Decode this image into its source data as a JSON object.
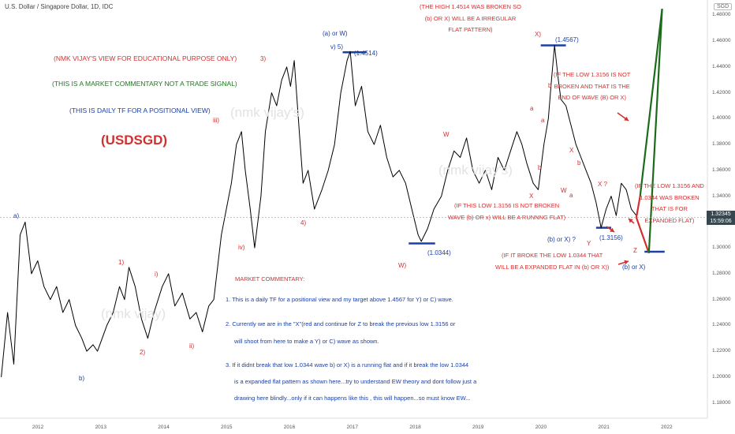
{
  "header": {
    "title": "U.S. Dollar / Singapore Dollar, 1D, IDC"
  },
  "currency_badge": "SGD",
  "last_price": {
    "value": "1.32345",
    "countdown": "15:59:06"
  },
  "intro": {
    "line1": "(NMK VIJAY'S VIEW FOR EDUCATIONAL PURPOSE ONLY)",
    "line2": "(THIS IS A MARKET COMMENTARY NOT A TRADE SIGNAL)",
    "line3": "(THIS IS DAILY TF FOR A POSITIONAL VIEW)",
    "symbol": "(USDSGD)"
  },
  "watermark": {
    "main": "(nmk vijay's)",
    "second": "(nmk vijay's)",
    "third": "(nmk vijay)"
  },
  "notes": {
    "high_broken": [
      "(THE HIGH 1.4514 WAS BROKEN SO",
      "(b) OR X) WILL BE A IRREGULAR",
      "FLAT PATTERN)"
    ],
    "low_not_broken_end": [
      "(IF THE LOW 1.3156 IS NOT",
      "BROKEN AND THAT IS THE",
      "END OF WAVE (B) OR X)"
    ],
    "low_not_broken_running": [
      "(IF THIS LOW 1.3156 IS NOT BROKEN",
      "WAVE (b) OR x) WILL BE A RUNNNG FLAT)"
    ],
    "both_broken_expanded": [
      "(IF THE LOW 1.3156 AND",
      "1.0344 WAS BROKEN",
      "THAT IS FOR",
      "EXPANDED FLAT)"
    ],
    "low_1_0344_expanded": [
      "(IF IT BROKE THE LOW 1.0344 THAT",
      "WILL BE A EXPANDED FLAT IN (b) OR X))"
    ]
  },
  "commentary": {
    "title": "MARKET COMMENTARY:",
    "p1": "1. This is a daily TF for a positional view and my target above 1.4567 for Y) or C) wave.",
    "p2a": "2. Currently we are in the \"X\"(red and continue for Z to break the previous low 1.3156 or",
    "p2b": "will shoot from here to make a Y) or C) wave as shown.",
    "p3a": "3. If it didnt break that low 1.0344  wave b) or X) is a running flat and if it break the low 1.0344",
    "p3b": "is a expanded flat pattern as shown here...try to understand EW theory and dont follow just a",
    "p3c": "drawing here blindly...only if it can happens like this , this will happen...so must know EW..."
  },
  "wave_labels": {
    "a_blue": "a)",
    "b_blue": "b)",
    "w1": "1)",
    "w2": "2)",
    "wi": "i)",
    "wii": "ii)",
    "wiii": "iii)",
    "wiv": "iv)",
    "w3": "3)",
    "w4": "4)",
    "aw_top": "(a) or W)",
    "v5": "v) 5)",
    "p14514": "(1.4514)",
    "Wb": "W)",
    "p10344": "(1.0344)",
    "Wr": "W",
    "Xr": "X",
    "Xparen": "X)",
    "p14567": "(1.4567)",
    "a1": "a",
    "b1": "b",
    "a2": "a",
    "b2": "b",
    "b3": "b",
    "a3": "a",
    "X2": "X",
    "W2": "W",
    "Y": "Y",
    "bx1": "(b) or X) ?",
    "p13156": "(1.3156)",
    "Xq": "X ?",
    "Z": "Z",
    "bx2": "(b) or X)"
  },
  "chart_data": {
    "type": "line",
    "title": "U.S. Dollar / Singapore Dollar, 1D, IDC",
    "xlabel": "",
    "ylabel": "",
    "x_ticks": [
      "2012",
      "2013",
      "2014",
      "2015",
      "2016",
      "2017",
      "2018",
      "2019",
      "2020",
      "2021",
      "2022"
    ],
    "ylim": [
      1.17,
      1.49
    ],
    "y_ticks": [
      "1.48000",
      "1.46000",
      "1.44000",
      "1.42000",
      "1.40000",
      "1.38000",
      "1.36000",
      "1.34000",
      "1.32000",
      "1.30000",
      "1.28000",
      "1.26000",
      "1.24000",
      "1.22000",
      "1.20000",
      "1.18000"
    ],
    "grid": false,
    "series": [
      {
        "color": "#000000",
        "points": [
          [
            2011.42,
            1.2
          ],
          [
            2011.52,
            1.25
          ],
          [
            2011.62,
            1.21
          ],
          [
            2011.72,
            1.31
          ],
          [
            2011.8,
            1.32
          ],
          [
            2011.9,
            1.28
          ],
          [
            2012.0,
            1.29
          ],
          [
            2012.1,
            1.27
          ],
          [
            2012.2,
            1.26
          ],
          [
            2012.3,
            1.27
          ],
          [
            2012.4,
            1.25
          ],
          [
            2012.5,
            1.26
          ],
          [
            2012.6,
            1.24
          ],
          [
            2012.7,
            1.23
          ],
          [
            2012.78,
            1.22
          ],
          [
            2012.88,
            1.225
          ],
          [
            2012.95,
            1.22
          ],
          [
            2013.1,
            1.24
          ],
          [
            2013.2,
            1.25
          ],
          [
            2013.3,
            1.27
          ],
          [
            2013.38,
            1.26
          ],
          [
            2013.45,
            1.285
          ],
          [
            2013.55,
            1.27
          ],
          [
            2013.65,
            1.245
          ],
          [
            2013.75,
            1.23
          ],
          [
            2013.85,
            1.25
          ],
          [
            2013.98,
            1.27
          ],
          [
            2014.08,
            1.28
          ],
          [
            2014.18,
            1.255
          ],
          [
            2014.3,
            1.265
          ],
          [
            2014.42,
            1.245
          ],
          [
            2014.52,
            1.25
          ],
          [
            2014.62,
            1.235
          ],
          [
            2014.72,
            1.255
          ],
          [
            2014.8,
            1.26
          ],
          [
            2014.92,
            1.31
          ],
          [
            2015.0,
            1.33
          ],
          [
            2015.08,
            1.35
          ],
          [
            2015.16,
            1.38
          ],
          [
            2015.24,
            1.39
          ],
          [
            2015.3,
            1.36
          ],
          [
            2015.38,
            1.33
          ],
          [
            2015.45,
            1.3
          ],
          [
            2015.55,
            1.34
          ],
          [
            2015.62,
            1.39
          ],
          [
            2015.72,
            1.42
          ],
          [
            2015.8,
            1.41
          ],
          [
            2015.88,
            1.43
          ],
          [
            2015.96,
            1.44
          ],
          [
            2016.02,
            1.425
          ],
          [
            2016.08,
            1.445
          ],
          [
            2016.16,
            1.39
          ],
          [
            2016.22,
            1.35
          ],
          [
            2016.3,
            1.36
          ],
          [
            2016.4,
            1.33
          ],
          [
            2016.52,
            1.345
          ],
          [
            2016.62,
            1.36
          ],
          [
            2016.72,
            1.38
          ],
          [
            2016.82,
            1.42
          ],
          [
            2016.92,
            1.445
          ],
          [
            2016.97,
            1.452
          ],
          [
            2017.05,
            1.41
          ],
          [
            2017.15,
            1.425
          ],
          [
            2017.25,
            1.39
          ],
          [
            2017.35,
            1.38
          ],
          [
            2017.45,
            1.395
          ],
          [
            2017.55,
            1.37
          ],
          [
            2017.65,
            1.355
          ],
          [
            2017.75,
            1.36
          ],
          [
            2017.85,
            1.35
          ],
          [
            2017.95,
            1.33
          ],
          [
            2018.05,
            1.31
          ],
          [
            2018.1,
            1.305
          ],
          [
            2018.2,
            1.315
          ],
          [
            2018.3,
            1.33
          ],
          [
            2018.42,
            1.34
          ],
          [
            2018.52,
            1.36
          ],
          [
            2018.62,
            1.375
          ],
          [
            2018.72,
            1.37
          ],
          [
            2018.82,
            1.385
          ],
          [
            2018.92,
            1.36
          ],
          [
            2019.02,
            1.35
          ],
          [
            2019.12,
            1.36
          ],
          [
            2019.22,
            1.345
          ],
          [
            2019.32,
            1.37
          ],
          [
            2019.42,
            1.36
          ],
          [
            2019.52,
            1.375
          ],
          [
            2019.62,
            1.39
          ],
          [
            2019.7,
            1.38
          ],
          [
            2019.78,
            1.365
          ],
          [
            2019.88,
            1.35
          ],
          [
            2019.96,
            1.345
          ],
          [
            2020.05,
            1.38
          ],
          [
            2020.12,
            1.4
          ],
          [
            2020.17,
            1.43
          ],
          [
            2020.22,
            1.4567
          ],
          [
            2020.28,
            1.43
          ],
          [
            2020.32,
            1.415
          ],
          [
            2020.4,
            1.41
          ],
          [
            2020.48,
            1.395
          ],
          [
            2020.56,
            1.38
          ],
          [
            2020.64,
            1.37
          ],
          [
            2020.72,
            1.36
          ],
          [
            2020.8,
            1.35
          ],
          [
            2020.88,
            1.335
          ],
          [
            2020.96,
            1.3156
          ],
          [
            2021.04,
            1.33
          ],
          [
            2021.12,
            1.34
          ],
          [
            2021.2,
            1.325
          ],
          [
            2021.28,
            1.35
          ],
          [
            2021.36,
            1.345
          ],
          [
            2021.44,
            1.33
          ],
          [
            2021.52,
            1.325
          ]
        ]
      },
      {
        "name": "",
        "color": "#d32f2f",
        "points": [
          [
            2021.52,
            1.3235
          ],
          [
            2021.72,
            1.296
          ]
        ]
      },
      {
        "name": "",
        "color": "#d32f2f",
        "points": [
          [
            2021.52,
            1.3235
          ],
          [
            2021.58,
            1.34
          ]
        ]
      },
      {
        "name": "",
        "color": "#1b6b1b",
        "points": [
          [
            2021.72,
            1.296
          ],
          [
            2021.93,
            1.485
          ]
        ]
      },
      {
        "name": "",
        "color": "#1b6b1b",
        "points": [
          [
            2021.58,
            1.34
          ],
          [
            2021.93,
            1.485
          ]
        ]
      }
    ],
    "levels": [
      {
        "value": 1.4514,
        "x_from": 2016.85,
        "x_to": 2017.23,
        "color": "#1a3fa8"
      },
      {
        "value": 1.4567,
        "x_from": 2020.0,
        "x_to": 2020.4,
        "color": "#1a3fa8"
      },
      {
        "value": 1.3034,
        "x_from": 2017.9,
        "x_to": 2018.32,
        "color": "#1a3fa8"
      },
      {
        "value": 1.3156,
        "x_from": 2020.88,
        "x_to": 2021.12,
        "color": "#1a3fa8"
      },
      {
        "value": 1.297,
        "x_from": 2021.65,
        "x_to": 2021.97,
        "color": "#1a3fa8"
      }
    ],
    "price_line": 1.32345
  }
}
